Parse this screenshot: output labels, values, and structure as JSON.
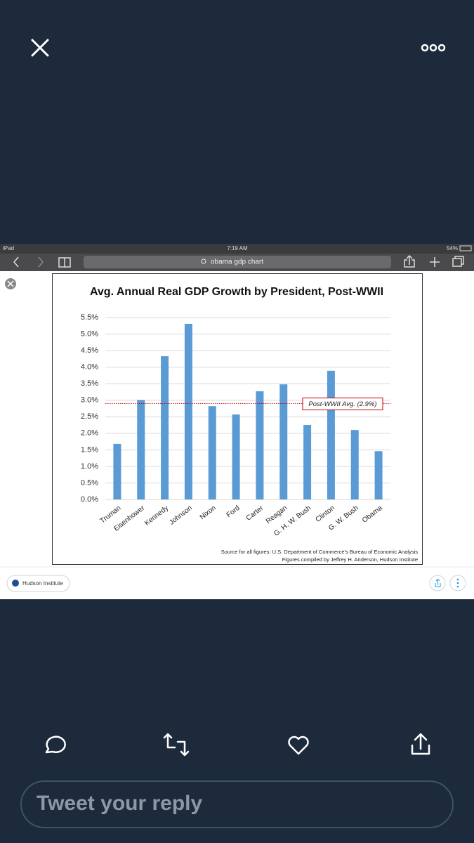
{
  "status_bar": {
    "device": "iPad",
    "time": "7:19 AM",
    "battery": "54%"
  },
  "browser": {
    "search": "obama gdp chart"
  },
  "card": {
    "source": "Hudson Institute"
  },
  "reply_box": {
    "placeholder": "Tweet your reply"
  },
  "chart_data": {
    "type": "bar",
    "title": "Avg. Annual Real GDP Growth by President, Post-WWII",
    "categories": [
      "Truman",
      "Eisenhower",
      "Kennedy",
      "Johnson",
      "Nixon",
      "Ford",
      "Carter",
      "Reagan",
      "G. H. W. Bush",
      "Clinton",
      "G. W. Bush",
      "Obama"
    ],
    "values": [
      1.68,
      3.01,
      4.33,
      5.31,
      2.82,
      2.57,
      3.27,
      3.48,
      2.25,
      3.89,
      2.1,
      1.46
    ],
    "color": "#5b9bd5",
    "ylim": [
      0,
      5.5
    ],
    "yticks": [
      {
        "value": 0,
        "label": "0.0%"
      },
      {
        "value": 0.5,
        "label": "0.5%"
      },
      {
        "value": 1,
        "label": "1.0%"
      },
      {
        "value": 1.5,
        "label": "1.5%"
      },
      {
        "value": 2,
        "label": "2.0%"
      },
      {
        "value": 2.5,
        "label": "2.5%"
      },
      {
        "value": 3,
        "label": "3.0%"
      },
      {
        "value": 3.5,
        "label": "3.5%"
      },
      {
        "value": 4,
        "label": "4.0%"
      },
      {
        "value": 4.5,
        "label": "4.5%"
      },
      {
        "value": 5,
        "label": "5.0%"
      },
      {
        "value": 5.5,
        "label": "5.5%"
      }
    ],
    "grid": true,
    "reference_line": {
      "value": 2.9,
      "label": "Post-WWII Avg. (2.9%)",
      "color": "#c00000"
    },
    "source_lines": [
      "Source for all figures: U.S. Department of Commerce's Bureau of Economic Analysis",
      "Figures compiled by Jeffrey H. Anderson, Hudson Institute"
    ]
  }
}
